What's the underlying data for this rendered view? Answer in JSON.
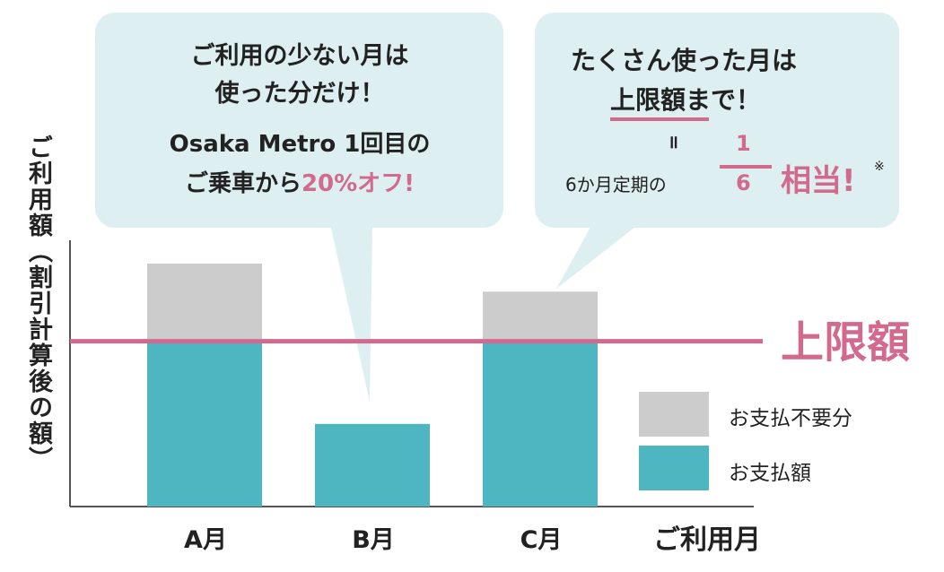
{
  "chart_data": {
    "type": "bar",
    "categories": [
      "A月",
      "B月",
      "C月"
    ],
    "series": [
      {
        "name": "お支払額",
        "values": [
          100,
          50,
          100
        ],
        "color": "#4db6c1"
      },
      {
        "name": "お支払不要分",
        "values": [
          47,
          0,
          30
        ],
        "color": "#cccccc"
      }
    ],
    "stacked": true,
    "limit_line": {
      "value": 100,
      "label": "上限額",
      "color": "#d16a8c"
    },
    "ylim": [
      0,
      160
    ],
    "xlabel": "ご利用月",
    "ylabel": "ご利用額（割引計算後の額）",
    "grid": false,
    "legend": {
      "placement": "bottom-right",
      "items": [
        "お支払不要分",
        "お支払額"
      ]
    }
  },
  "callout_left": {
    "line1": "ご利用の少ない月は",
    "line2": "使った分だけ！",
    "line3": "Osaka Metro 1回目の",
    "line4_a": "ご乗車から",
    "line4_b": "20%オフ!"
  },
  "callout_right": {
    "line1": "たくさん使った月は",
    "line2": "上限額まで！",
    "equals": "॥",
    "prefix": "6か月定期の",
    "numerator": "1",
    "denominator": "6",
    "suffix": "相当!",
    "note_mark": "※"
  },
  "colors": {
    "teal": "#4db6c1",
    "gray": "#cccccc",
    "pink": "#d16a8c",
    "bubble": "#ddeff1"
  }
}
